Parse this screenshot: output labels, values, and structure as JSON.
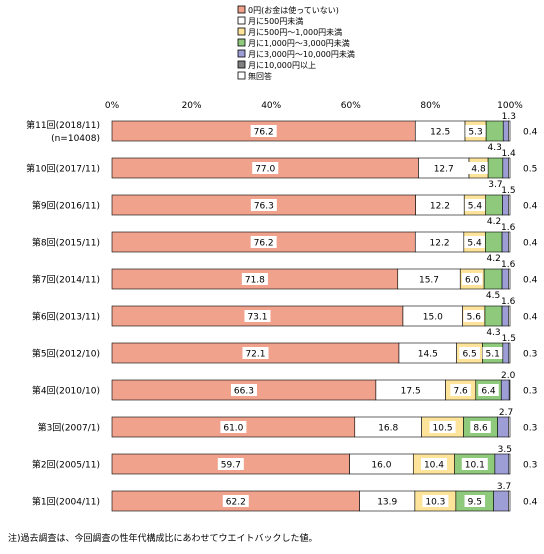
{
  "chart_data": {
    "type": "bar",
    "orientation": "horizontal",
    "stacked": true,
    "percent": true,
    "xlim": [
      0,
      100
    ],
    "x_ticks": [
      "0%",
      "20%",
      "40%",
      "60%",
      "80%",
      "100%"
    ],
    "grid": false,
    "legend_position": "top",
    "categories": [
      {
        "label": "第11回(2018/11)",
        "sublabel": "(n=10408)"
      },
      {
        "label": "第10回(2017/11)"
      },
      {
        "label": "第9回(2016/11)"
      },
      {
        "label": "第8回(2015/11)"
      },
      {
        "label": "第7回(2014/11)"
      },
      {
        "label": "第6回(2013/11)"
      },
      {
        "label": "第5回(2012/10)"
      },
      {
        "label": "第4回(2010/10)"
      },
      {
        "label": "第3回(2007/1)"
      },
      {
        "label": "第2回(2005/11)"
      },
      {
        "label": "第1回(2004/11)"
      }
    ],
    "series": [
      {
        "name": "0円(お金は使っていない)",
        "color": "#f0a28c",
        "values": [
          76.2,
          77.0,
          76.3,
          76.2,
          71.8,
          73.1,
          72.1,
          66.3,
          61.0,
          59.7,
          62.2
        ]
      },
      {
        "name": "月に500円未満",
        "color": "#ffffff",
        "values": [
          12.5,
          12.7,
          12.2,
          12.2,
          15.7,
          15.0,
          14.5,
          17.5,
          16.8,
          16.0,
          13.9
        ]
      },
      {
        "name": "月に500円〜1,000円未満",
        "color": "#fde49a",
        "values": [
          5.3,
          4.8,
          5.4,
          5.4,
          6.0,
          5.6,
          6.5,
          7.6,
          10.5,
          10.4,
          10.3
        ]
      },
      {
        "name": "月に1,000円〜3,000円未満",
        "color": "#8fc97c",
        "values": [
          4.3,
          3.7,
          4.2,
          4.2,
          4.5,
          4.3,
          5.1,
          6.4,
          8.6,
          10.1,
          9.5
        ]
      },
      {
        "name": "月に3,000円〜10,000円未満",
        "color": "#9d9ed6",
        "values": [
          1.3,
          1.4,
          1.5,
          1.6,
          1.6,
          1.6,
          1.5,
          2.0,
          2.7,
          3.5,
          3.7
        ]
      },
      {
        "name": "月に10,000円以上",
        "color": "#808080",
        "values": [
          null,
          null,
          null,
          null,
          null,
          null,
          null,
          null,
          null,
          null,
          null
        ]
      },
      {
        "name": "無回答",
        "color": "#ffffff",
        "values": [
          0.4,
          0.5,
          0.4,
          0.4,
          0.4,
          0.4,
          0.3,
          0.3,
          0.3,
          0.3,
          0.4
        ]
      }
    ],
    "note": "注)過去調査は、今回調査の性年代構成比にあわせてウエイトバックした値。"
  }
}
